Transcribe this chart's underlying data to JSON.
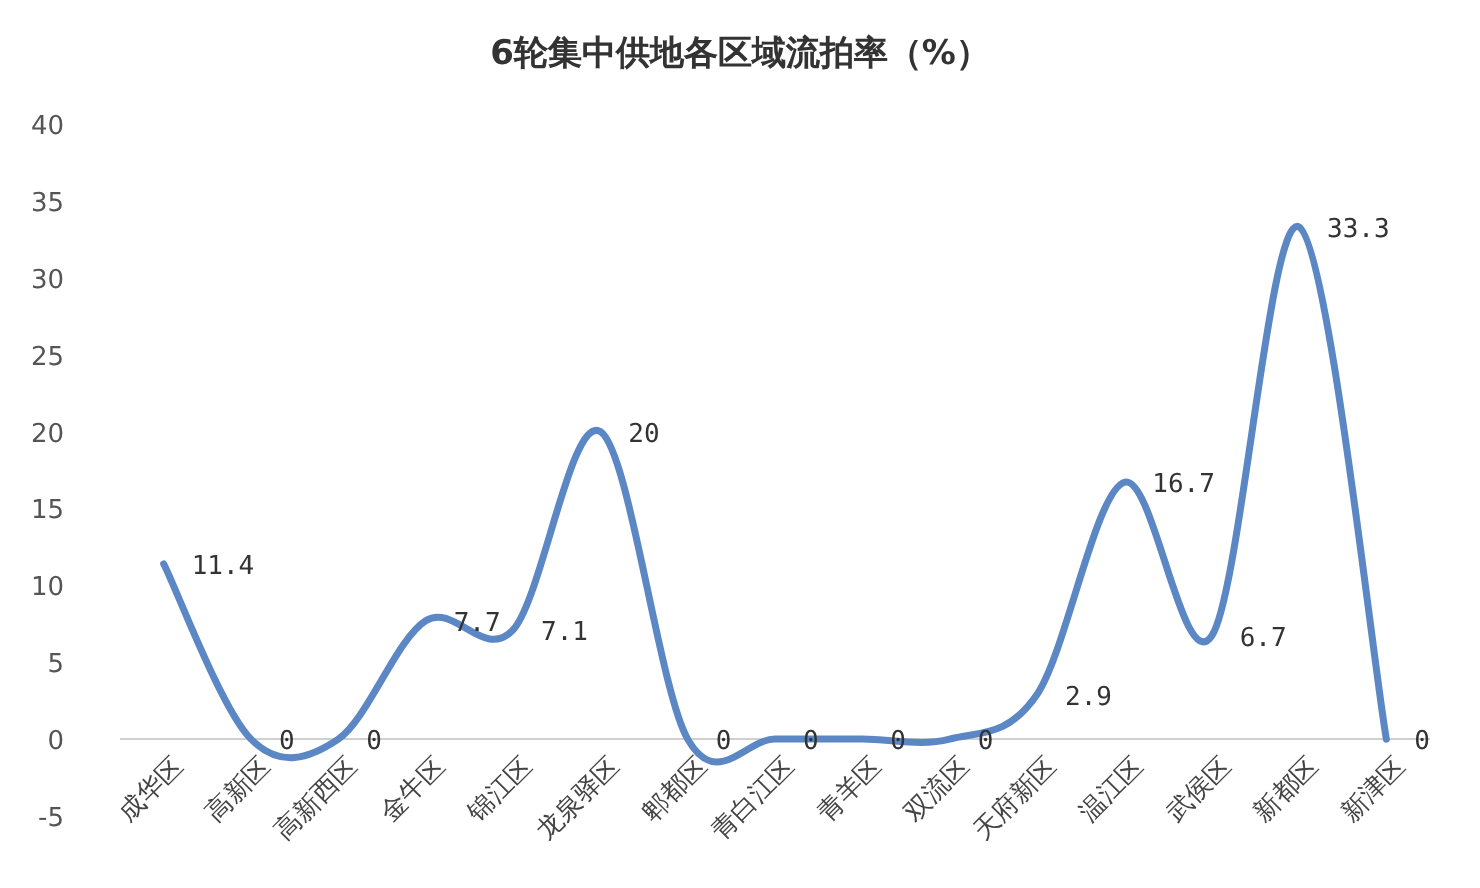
{
  "chart_data": {
    "type": "line",
    "title": "6轮集中供地各区域流拍率（%）",
    "categories": [
      "成华区",
      "高新区",
      "高新西区",
      "金牛区",
      "锦江区",
      "龙泉驿区",
      "郫都区",
      "青白江区",
      "青羊区",
      "双流区",
      "天府新区",
      "温江区",
      "武侯区",
      "新都区",
      "新津区"
    ],
    "series": [
      {
        "color": "#5b87c5",
        "values": [
          11.4,
          0,
          0,
          7.7,
          7.1,
          20,
          0,
          0,
          0,
          0,
          2.9,
          16.7,
          6.7,
          33.3,
          0
        ]
      }
    ],
    "ylim": [
      -5,
      40
    ],
    "yticks": [
      -5,
      0,
      5,
      10,
      15,
      20,
      25,
      30,
      35,
      40
    ],
    "data_labels": true,
    "marker": "none",
    "line_style": "solid"
  }
}
